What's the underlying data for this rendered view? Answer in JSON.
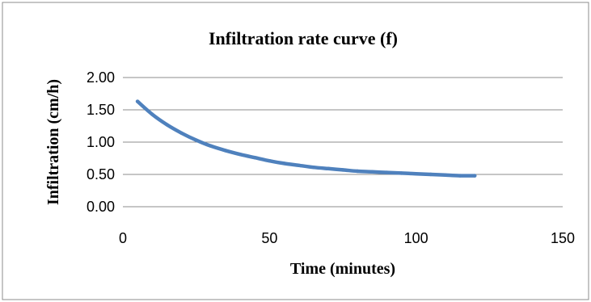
{
  "chart_data": {
    "type": "line",
    "title": "Infiltration rate curve (f)",
    "xlabel": "Time (minutes)",
    "ylabel": "Infiltration (cm/h)",
    "xlim": [
      0,
      150
    ],
    "ylim": [
      0,
      2
    ],
    "xticks": [
      0,
      50,
      100,
      150
    ],
    "xtick_labels": [
      "0",
      "50",
      "100",
      "150"
    ],
    "yticks": [
      0,
      0.5,
      1,
      1.5,
      2
    ],
    "ytick_labels": [
      "0.00",
      "0.50",
      "1.00",
      "1.50",
      "2.00"
    ],
    "grid": "horizontal",
    "legend": "none",
    "series": [
      {
        "color": "#4f81bd",
        "x": [
          5,
          10,
          15,
          20,
          25,
          30,
          35,
          40,
          45,
          50,
          55,
          60,
          65,
          70,
          75,
          80,
          85,
          90,
          95,
          100,
          105,
          110,
          115,
          120
        ],
        "y": [
          1.63,
          1.43,
          1.27,
          1.14,
          1.03,
          0.94,
          0.87,
          0.81,
          0.76,
          0.71,
          0.67,
          0.64,
          0.61,
          0.59,
          0.57,
          0.55,
          0.54,
          0.53,
          0.52,
          0.51,
          0.5,
          0.49,
          0.48,
          0.48
        ]
      }
    ]
  }
}
